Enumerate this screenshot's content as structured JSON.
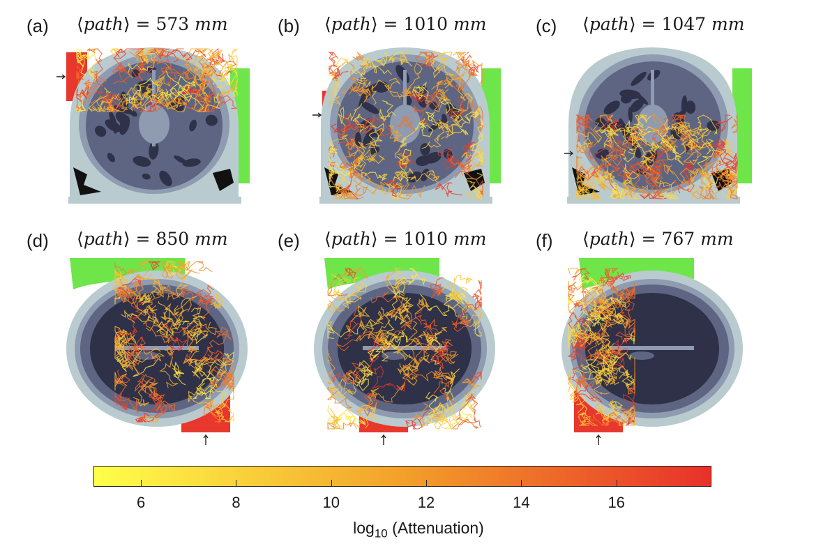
{
  "figure": {
    "panels": [
      {
        "letter": "(a)",
        "path_symbol": "path",
        "path_value": "573",
        "unit": "mm",
        "view": "coronal",
        "source_side": "left-top"
      },
      {
        "letter": "(b)",
        "path_symbol": "path",
        "path_value": "1010",
        "unit": "mm",
        "view": "coronal",
        "source_side": "left-middle"
      },
      {
        "letter": "(c)",
        "path_symbol": "path",
        "path_value": "1047",
        "unit": "mm",
        "view": "coronal",
        "source_side": "left-bottom"
      },
      {
        "letter": "(d)",
        "path_symbol": "path",
        "path_value": "850",
        "unit": "mm",
        "view": "axial",
        "source_side": "bottom-right"
      },
      {
        "letter": "(e)",
        "path_symbol": "path",
        "path_value": "1010",
        "unit": "mm",
        "view": "axial",
        "source_side": "bottom-middle"
      },
      {
        "letter": "(f)",
        "path_symbol": "path",
        "path_value": "767",
        "unit": "mm",
        "view": "axial",
        "source_side": "bottom-left"
      }
    ],
    "colorbar": {
      "ticks": [
        "6",
        "8",
        "10",
        "12",
        "14",
        "16"
      ],
      "label_prefix": "log",
      "label_sub": "10",
      "label_suffix": " (Attenuation)",
      "range": [
        5.0,
        18.0
      ],
      "color_low": "#ffff4a",
      "color_mid": "#f3a02a",
      "color_high": "#e8302a"
    },
    "colors": {
      "scalp": "#b9cbcf",
      "csf": "#8e9bb0",
      "gray_matter": "#5d6582",
      "white_matter": "#2e3148",
      "source": "#e8372c",
      "detector": "#6ee64a",
      "air": "#111111"
    }
  }
}
